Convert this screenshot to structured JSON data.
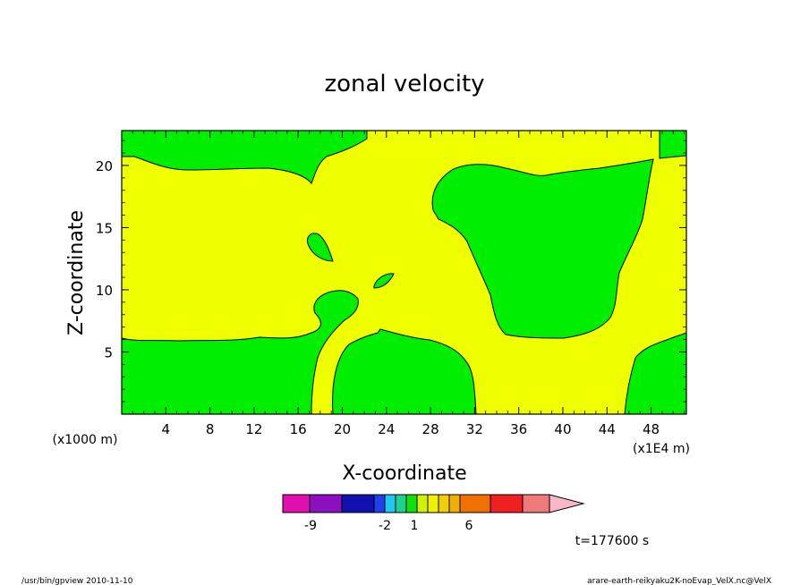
{
  "chart_data": {
    "type": "contour",
    "title": "zonal velocity",
    "xlabel": "X-coordinate",
    "ylabel": "Z-coordinate",
    "x_unit_left": "(x1000 m)",
    "x_unit_right": "(x1E4 m)",
    "xlim": [
      0,
      51.2
    ],
    "ylim": [
      0,
      22.8
    ],
    "x_ticks": [
      4,
      8,
      12,
      16,
      20,
      24,
      28,
      32,
      36,
      40,
      44,
      48
    ],
    "y_ticks": [
      5,
      10,
      15,
      20
    ],
    "time_label": "t=177600 s",
    "colorbar": {
      "colors": [
        "#e010b0",
        "#8a10c0",
        "#1010b0",
        "#2040f0",
        "#20c8f0",
        "#20d090",
        "#10e010",
        "#d0f000",
        "#f0f000",
        "#f0d000",
        "#f0b000",
        "#f07000",
        "#f02020",
        "#f07a7a",
        "#f8b8c8"
      ],
      "labels": [
        "-9",
        "-2",
        "1",
        "6"
      ]
    },
    "regions": [
      {
        "level": "green",
        "color": "#00ee00",
        "shape": "bottom-left"
      },
      {
        "level": "green",
        "color": "#00ee00",
        "shape": "bottom-middle"
      },
      {
        "level": "green",
        "color": "#00ee00",
        "shape": "bottom-right"
      },
      {
        "level": "green",
        "color": "#00ee00",
        "shape": "top-band"
      },
      {
        "level": "green",
        "color": "#00ee00",
        "shape": "right-blob"
      },
      {
        "level": "green",
        "color": "#00ee00",
        "shape": "top-right-corner"
      },
      {
        "level": "green",
        "color": "#00ee00",
        "shape": "small-blob-1"
      },
      {
        "level": "green",
        "color": "#00ee00",
        "shape": "small-blob-2"
      },
      {
        "level": "green",
        "color": "#00ee00",
        "shape": "small-blob-3"
      }
    ],
    "background_color": "#f0ff00"
  },
  "footer": {
    "left": "/usr/bin/gpview   2010-11-10",
    "right": "arare-earth-reikyaku2K-noEvap_VelX.nc@VelX"
  }
}
